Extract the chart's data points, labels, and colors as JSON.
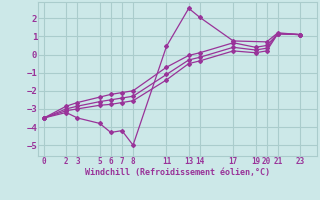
{
  "xlabel": "Windchill (Refroidissement éolien,°C)",
  "background_color": "#cce8e8",
  "grid_color": "#aacccc",
  "line_color": "#993399",
  "xlim": [
    -0.5,
    24.5
  ],
  "ylim": [
    -5.6,
    2.9
  ],
  "xticks": [
    0,
    2,
    3,
    5,
    6,
    7,
    8,
    11,
    13,
    14,
    17,
    19,
    20,
    21,
    23
  ],
  "yticks": [
    -5,
    -4,
    -3,
    -2,
    -1,
    0,
    1,
    2
  ],
  "lines": [
    {
      "x": [
        0,
        2,
        3,
        5,
        6,
        7,
        8,
        11,
        13,
        14,
        17,
        20,
        21,
        23
      ],
      "y": [
        -3.5,
        -3.2,
        -3.5,
        -3.8,
        -4.3,
        -4.2,
        -5.0,
        0.45,
        2.55,
        2.05,
        0.75,
        0.7,
        1.2,
        1.1
      ]
    },
    {
      "x": [
        0,
        2,
        3,
        5,
        6,
        7,
        8,
        11,
        13,
        14,
        17,
        19,
        20,
        21,
        23
      ],
      "y": [
        -3.5,
        -3.1,
        -3.0,
        -2.8,
        -2.75,
        -2.65,
        -2.55,
        -1.4,
        -0.5,
        -0.35,
        0.2,
        0.1,
        0.2,
        1.15,
        1.1
      ]
    },
    {
      "x": [
        0,
        2,
        3,
        5,
        6,
        7,
        8,
        11,
        13,
        14,
        17,
        19,
        20,
        21,
        23
      ],
      "y": [
        -3.5,
        -3.0,
        -2.85,
        -2.6,
        -2.5,
        -2.4,
        -2.3,
        -1.1,
        -0.3,
        -0.15,
        0.4,
        0.25,
        0.35,
        1.15,
        1.1
      ]
    },
    {
      "x": [
        0,
        2,
        3,
        5,
        6,
        7,
        8,
        11,
        13,
        14,
        17,
        19,
        20,
        21,
        23
      ],
      "y": [
        -3.5,
        -2.85,
        -2.65,
        -2.35,
        -2.2,
        -2.1,
        -2.0,
        -0.7,
        -0.05,
        0.1,
        0.65,
        0.4,
        0.5,
        1.15,
        1.1
      ]
    }
  ]
}
